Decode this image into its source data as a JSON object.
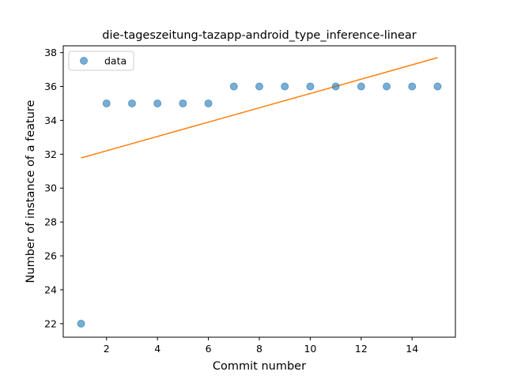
{
  "chart_data": {
    "type": "scatter",
    "title": "die-tageszeitung-tazapp-android_type_inference-linear",
    "xlabel": "Commit number",
    "ylabel": "Number of instance of a feature",
    "xlim": [
      0.3,
      15.7
    ],
    "ylim": [
      21.2,
      38.4
    ],
    "x_ticks": [
      2,
      4,
      6,
      8,
      10,
      12,
      14
    ],
    "y_ticks": [
      22,
      24,
      26,
      28,
      30,
      32,
      34,
      36,
      38
    ],
    "grid": false,
    "legend": {
      "position": "top-left",
      "entries": [
        "data"
      ]
    },
    "series": [
      {
        "name": "data",
        "kind": "scatter",
        "color": "#1f77b4",
        "x": [
          1,
          2,
          3,
          4,
          5,
          6,
          7,
          8,
          9,
          10,
          11,
          12,
          13,
          14,
          15
        ],
        "y": [
          22,
          35,
          35,
          35,
          35,
          35,
          36,
          36,
          36,
          36,
          36,
          36,
          36,
          36,
          36
        ]
      },
      {
        "kind": "line",
        "color": "#ff7f0e",
        "x": [
          1,
          15
        ],
        "y": [
          31.78,
          37.7
        ]
      }
    ]
  }
}
